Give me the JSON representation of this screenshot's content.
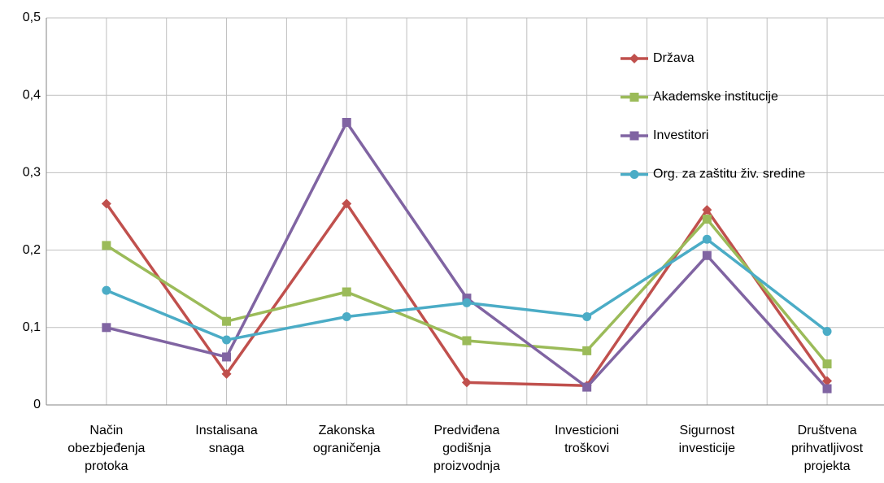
{
  "chart_data": {
    "type": "line",
    "categories": [
      "Način\nobezbjeđenja\nprotoka",
      "Instalisana\nsnaga",
      "Zakonska\nograničenja",
      "Predviđena\ngodišnja\nproizvodnja",
      "Investicioni\ntroškovi",
      "Sigurnost\ninvesticije",
      "Društvena\nprihvatljivost\nprojekta"
    ],
    "series": [
      {
        "name": "Država",
        "color": "#c0504d",
        "marker": "diamond",
        "values": [
          0.26,
          0.04,
          0.26,
          0.029,
          0.025,
          0.252,
          0.031
        ]
      },
      {
        "name": "Akademske institucije",
        "color": "#9bbb59",
        "marker": "square",
        "values": [
          0.206,
          0.108,
          0.146,
          0.083,
          0.07,
          0.24,
          0.053
        ]
      },
      {
        "name": "Investitori",
        "color": "#8064a2",
        "marker": "square",
        "values": [
          0.1,
          0.062,
          0.365,
          0.138,
          0.023,
          0.193,
          0.021
        ]
      },
      {
        "name": "Org. za zaštitu živ. sredine",
        "color": "#4bacc6",
        "marker": "circle",
        "values": [
          0.148,
          0.084,
          0.114,
          0.132,
          0.114,
          0.214,
          0.095
        ]
      }
    ],
    "ylim": [
      0,
      0.5
    ],
    "yticks": [
      0,
      {
        "value": 0.1,
        "label": "0,1"
      },
      {
        "value": 0.2,
        "label": "0,2"
      },
      {
        "value": 0.3,
        "label": "0,3"
      },
      {
        "value": 0.4,
        "label": "0,4"
      },
      {
        "value": 0.5,
        "label": "0,5"
      }
    ],
    "grid": true,
    "legend": "upper right"
  }
}
